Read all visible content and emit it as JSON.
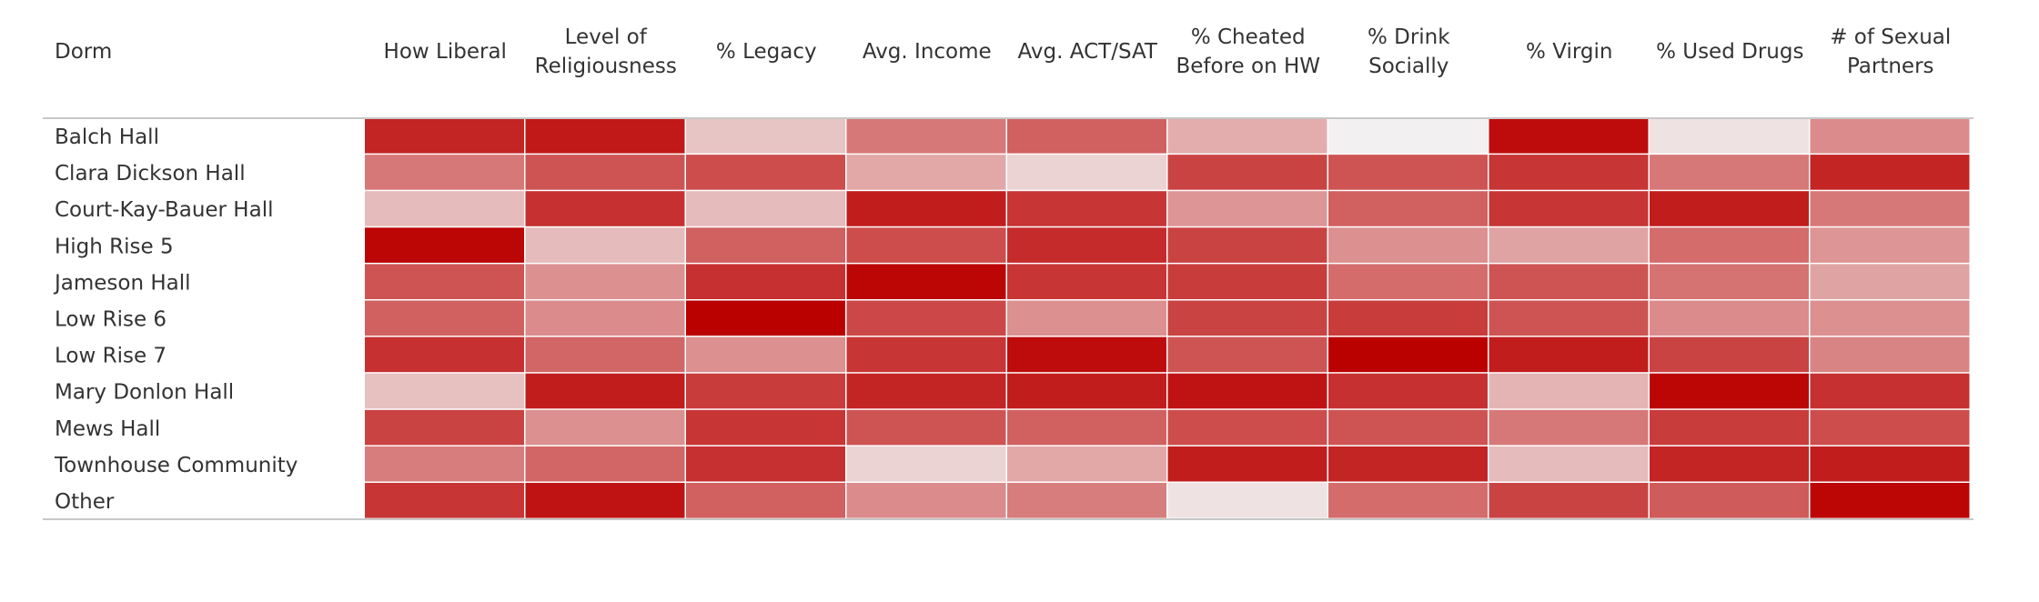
{
  "chart_data": {
    "type": "heatmap",
    "row_header": "Dorm",
    "columns": [
      [
        "How Liberal"
      ],
      [
        "Level of",
        "Religiousness"
      ],
      [
        "% Legacy"
      ],
      [
        "Avg. Income"
      ],
      [
        "Avg. ACT/SAT"
      ],
      [
        "% Cheated",
        "Before on HW"
      ],
      [
        "% Drink",
        "Socially"
      ],
      [
        "% Virgin"
      ],
      [
        "% Used Drugs"
      ],
      [
        "# of Sexual",
        "Partners"
      ]
    ],
    "rows": [
      "Balch Hall",
      "Clara Dickson Hall",
      "Court-Kay-Bauer Hall",
      "High Rise 5",
      "Jameson Hall",
      "Low Rise 6",
      "Low Rise 7",
      "Mary Donlon Hall",
      "Mews Hall",
      "Townhouse Community",
      "Other"
    ],
    "color_scale": {
      "low": "#f2f0f0",
      "high": "#bb0000"
    },
    "values": [
      [
        0.85,
        0.9,
        0.18,
        0.5,
        0.6,
        0.28,
        0.0,
        0.95,
        0.06,
        0.42
      ],
      [
        0.5,
        0.65,
        0.68,
        0.3,
        0.12,
        0.72,
        0.65,
        0.78,
        0.5,
        0.85
      ],
      [
        0.22,
        0.8,
        0.22,
        0.88,
        0.78,
        0.38,
        0.6,
        0.78,
        0.88,
        0.5
      ],
      [
        0.98,
        0.22,
        0.6,
        0.68,
        0.82,
        0.72,
        0.4,
        0.32,
        0.55,
        0.38
      ],
      [
        0.65,
        0.4,
        0.8,
        0.98,
        0.78,
        0.75,
        0.55,
        0.65,
        0.52,
        0.32
      ],
      [
        0.6,
        0.42,
        1.0,
        0.7,
        0.4,
        0.72,
        0.75,
        0.65,
        0.42,
        0.4
      ],
      [
        0.8,
        0.58,
        0.4,
        0.78,
        0.95,
        0.65,
        1.0,
        0.88,
        0.72,
        0.45
      ],
      [
        0.2,
        0.88,
        0.75,
        0.85,
        0.88,
        0.92,
        0.8,
        0.25,
        0.98,
        0.8
      ],
      [
        0.72,
        0.4,
        0.78,
        0.65,
        0.6,
        0.68,
        0.65,
        0.5,
        0.75,
        0.68
      ],
      [
        0.48,
        0.58,
        0.8,
        0.12,
        0.3,
        0.88,
        0.85,
        0.22,
        0.85,
        0.88
      ],
      [
        0.78,
        0.92,
        0.6,
        0.42,
        0.48,
        0.06,
        0.55,
        0.72,
        0.62,
        0.98
      ]
    ]
  }
}
